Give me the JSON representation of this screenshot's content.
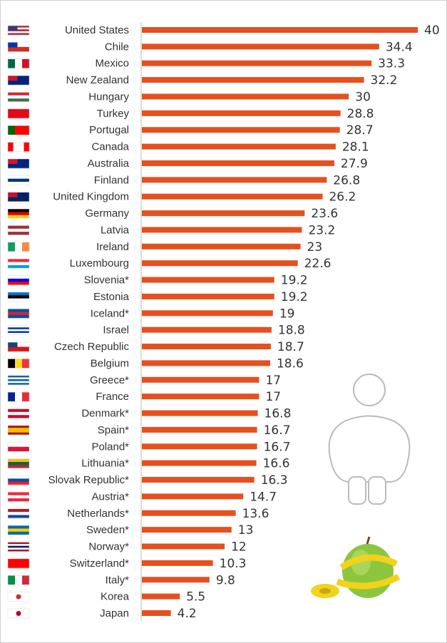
{
  "chart_data": {
    "type": "bar",
    "orientation": "horizontal",
    "title": "",
    "xlabel": "",
    "ylabel": "",
    "xlim": [
      0,
      40
    ],
    "grid": false,
    "bar_color": "#e5501e",
    "categories": [
      "United States",
      "Chile",
      "Mexico",
      "New Zealand",
      "Hungary",
      "Turkey",
      "Portugal",
      "Canada",
      "Australia",
      "Finland",
      "United Kingdom",
      "Germany",
      "Latvia",
      "Ireland",
      "Luxembourg",
      "Slovenia*",
      "Estonia",
      "Iceland*",
      "Israel",
      "Czech Republic",
      "Belgium",
      "Greece*",
      "France",
      "Denmark*",
      "Spain*",
      "Poland*",
      "Lithuania*",
      "Slovak Republic*",
      "Austria*",
      "Netherlands*",
      "Sweden*",
      "Norway*",
      "Switzerland*",
      "Italy*",
      "Korea",
      "Japan"
    ],
    "values": [
      40,
      34.4,
      33.3,
      32.2,
      30,
      28.8,
      28.7,
      28.1,
      27.9,
      26.8,
      26.2,
      23.6,
      23.2,
      23,
      22.6,
      19.2,
      19.2,
      19,
      18.8,
      18.7,
      18.6,
      17,
      17,
      16.8,
      16.7,
      16.7,
      16.6,
      16.3,
      14.7,
      13.6,
      13,
      12,
      10.3,
      9.8,
      5.5,
      4.2
    ],
    "flags": [
      {
        "d": "h",
        "c": [
          "#b22234",
          "#ffffff",
          "#b22234",
          "#ffffff",
          "#b22234"
        ],
        "canton": "#3c3b6e"
      },
      {
        "d": "h",
        "c": [
          "#ffffff",
          "#d52b1e"
        ],
        "canton": "#0039a6"
      },
      {
        "d": "v",
        "c": [
          "#006847",
          "#ffffff",
          "#ce1126"
        ]
      },
      {
        "d": "h",
        "c": [
          "#00247d"
        ],
        "canton": "#cf142b"
      },
      {
        "d": "h",
        "c": [
          "#cd2a3e",
          "#ffffff",
          "#436f4d"
        ]
      },
      {
        "d": "h",
        "c": [
          "#e30a17"
        ]
      },
      {
        "d": "v",
        "c": [
          "#006600",
          "#ff0000",
          "#ff0000"
        ]
      },
      {
        "d": "v",
        "c": [
          "#ff0000",
          "#ffffff",
          "#ffffff",
          "#ff0000"
        ]
      },
      {
        "d": "h",
        "c": [
          "#00247d"
        ],
        "canton": "#cf142b"
      },
      {
        "d": "h",
        "c": [
          "#ffffff",
          "#003580",
          "#ffffff"
        ]
      },
      {
        "d": "h",
        "c": [
          "#012169"
        ],
        "canton": "#c8102e"
      },
      {
        "d": "h",
        "c": [
          "#000000",
          "#dd0000",
          "#ffce00"
        ]
      },
      {
        "d": "h",
        "c": [
          "#9e3039",
          "#ffffff",
          "#9e3039"
        ]
      },
      {
        "d": "v",
        "c": [
          "#169b62",
          "#ffffff",
          "#ff883e"
        ]
      },
      {
        "d": "h",
        "c": [
          "#ed2939",
          "#ffffff",
          "#00a1de"
        ]
      },
      {
        "d": "h",
        "c": [
          "#ffffff",
          "#0000ff",
          "#ff0000"
        ]
      },
      {
        "d": "h",
        "c": [
          "#0072ce",
          "#000000",
          "#ffffff"
        ]
      },
      {
        "d": "h",
        "c": [
          "#02529c",
          "#dc1e35",
          "#02529c"
        ]
      },
      {
        "d": "h",
        "c": [
          "#ffffff",
          "#0038b8",
          "#ffffff",
          "#0038b8",
          "#ffffff"
        ]
      },
      {
        "d": "h",
        "c": [
          "#ffffff",
          "#d7141a"
        ],
        "canton": "#11457e"
      },
      {
        "d": "v",
        "c": [
          "#000000",
          "#fdda24",
          "#ef3340"
        ]
      },
      {
        "d": "h",
        "c": [
          "#0d5eaf",
          "#ffffff",
          "#0d5eaf",
          "#ffffff",
          "#0d5eaf"
        ]
      },
      {
        "d": "v",
        "c": [
          "#002395",
          "#ffffff",
          "#ed2939"
        ]
      },
      {
        "d": "h",
        "c": [
          "#c60c30",
          "#ffffff",
          "#c60c30"
        ]
      },
      {
        "d": "h",
        "c": [
          "#aa151b",
          "#f1bf00",
          "#f1bf00",
          "#aa151b"
        ]
      },
      {
        "d": "h",
        "c": [
          "#ffffff",
          "#dc143c"
        ]
      },
      {
        "d": "h",
        "c": [
          "#fdb913",
          "#006a44",
          "#c1272d"
        ]
      },
      {
        "d": "h",
        "c": [
          "#ffffff",
          "#0b4ea2",
          "#ee1c25"
        ]
      },
      {
        "d": "h",
        "c": [
          "#ed2939",
          "#ffffff",
          "#ed2939"
        ]
      },
      {
        "d": "h",
        "c": [
          "#ae1c28",
          "#ffffff",
          "#21468b"
        ]
      },
      {
        "d": "h",
        "c": [
          "#006aa7",
          "#fecc00",
          "#006aa7"
        ]
      },
      {
        "d": "h",
        "c": [
          "#ba0c2f",
          "#ffffff",
          "#00205b",
          "#ffffff",
          "#ba0c2f"
        ]
      },
      {
        "d": "h",
        "c": [
          "#ff0000"
        ]
      },
      {
        "d": "v",
        "c": [
          "#009246",
          "#ffffff",
          "#ce2b37"
        ]
      },
      {
        "d": "h",
        "c": [
          "#ffffff"
        ],
        "dot": "#cd2e3a"
      },
      {
        "d": "h",
        "c": [
          "#ffffff"
        ],
        "dot": "#bc002d"
      }
    ]
  }
}
